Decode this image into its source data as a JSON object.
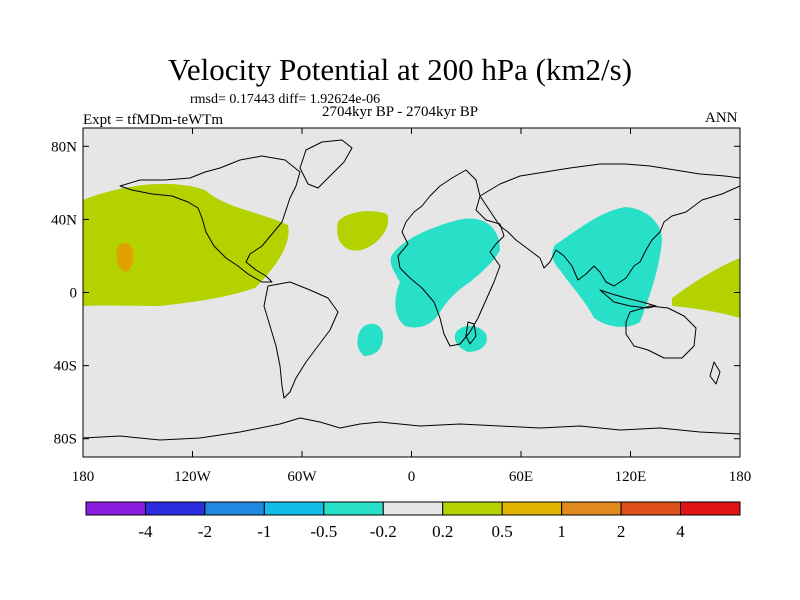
{
  "title": "Velocity Potential at 200 hPa (km2/s)",
  "stats": "rmsd= 0.17443 diff= 1.92624e-06",
  "period": "2704kyr BP - 2704kyr BP",
  "experiment": "Expt = tfMDm-teWTm",
  "season": "ANN",
  "map": {
    "projection": "cylindrical-equidistant",
    "background_color": "#e6e6e6",
    "lat_ticks": [
      80,
      40,
      0,
      -40,
      -80
    ],
    "lat_labels": [
      "80N",
      "40N",
      "0",
      "40S",
      "80S"
    ],
    "lon_ticks": [
      -180,
      -120,
      -60,
      0,
      60,
      120,
      180
    ],
    "lon_labels": [
      "180",
      "120W",
      "60W",
      "0",
      "60E",
      "120E",
      "180"
    ],
    "anomaly_regions": [
      {
        "name": "north-pacific-positive",
        "category": "0.2 to 0.5",
        "color": "#b4d200"
      },
      {
        "name": "hawaii-positive-core",
        "category": "0.5 to 1",
        "color": "#e0a000"
      },
      {
        "name": "west-pacific-positive",
        "category": "0.2 to 0.5",
        "color": "#b4d200"
      },
      {
        "name": "north-atlantic-positive",
        "category": "0.2 to 0.5",
        "color": "#b4d200"
      },
      {
        "name": "south-atlantic-negative",
        "category": "-0.5 to -0.2",
        "color": "#28e0c8"
      },
      {
        "name": "africa-negative",
        "category": "-0.5 to -0.2",
        "color": "#28e0c8"
      },
      {
        "name": "madagascar-negative",
        "category": "-0.5 to -0.2",
        "color": "#28e0c8"
      },
      {
        "name": "asia-negative",
        "category": "-0.5 to -0.2",
        "color": "#28e0c8"
      }
    ]
  },
  "colorbar": {
    "labels": [
      "-4",
      "-2",
      "-1",
      "-0.5",
      "-0.2",
      "0.2",
      "0.5",
      "1",
      "2",
      "4"
    ],
    "colors": [
      "#8a1de0",
      "#2c2ce0",
      "#1f88e0",
      "#12bde6",
      "#28e0c8",
      "#e6e6e6",
      "#b4d200",
      "#e0b400",
      "#e08a1e",
      "#e0501a",
      "#e01414"
    ]
  }
}
